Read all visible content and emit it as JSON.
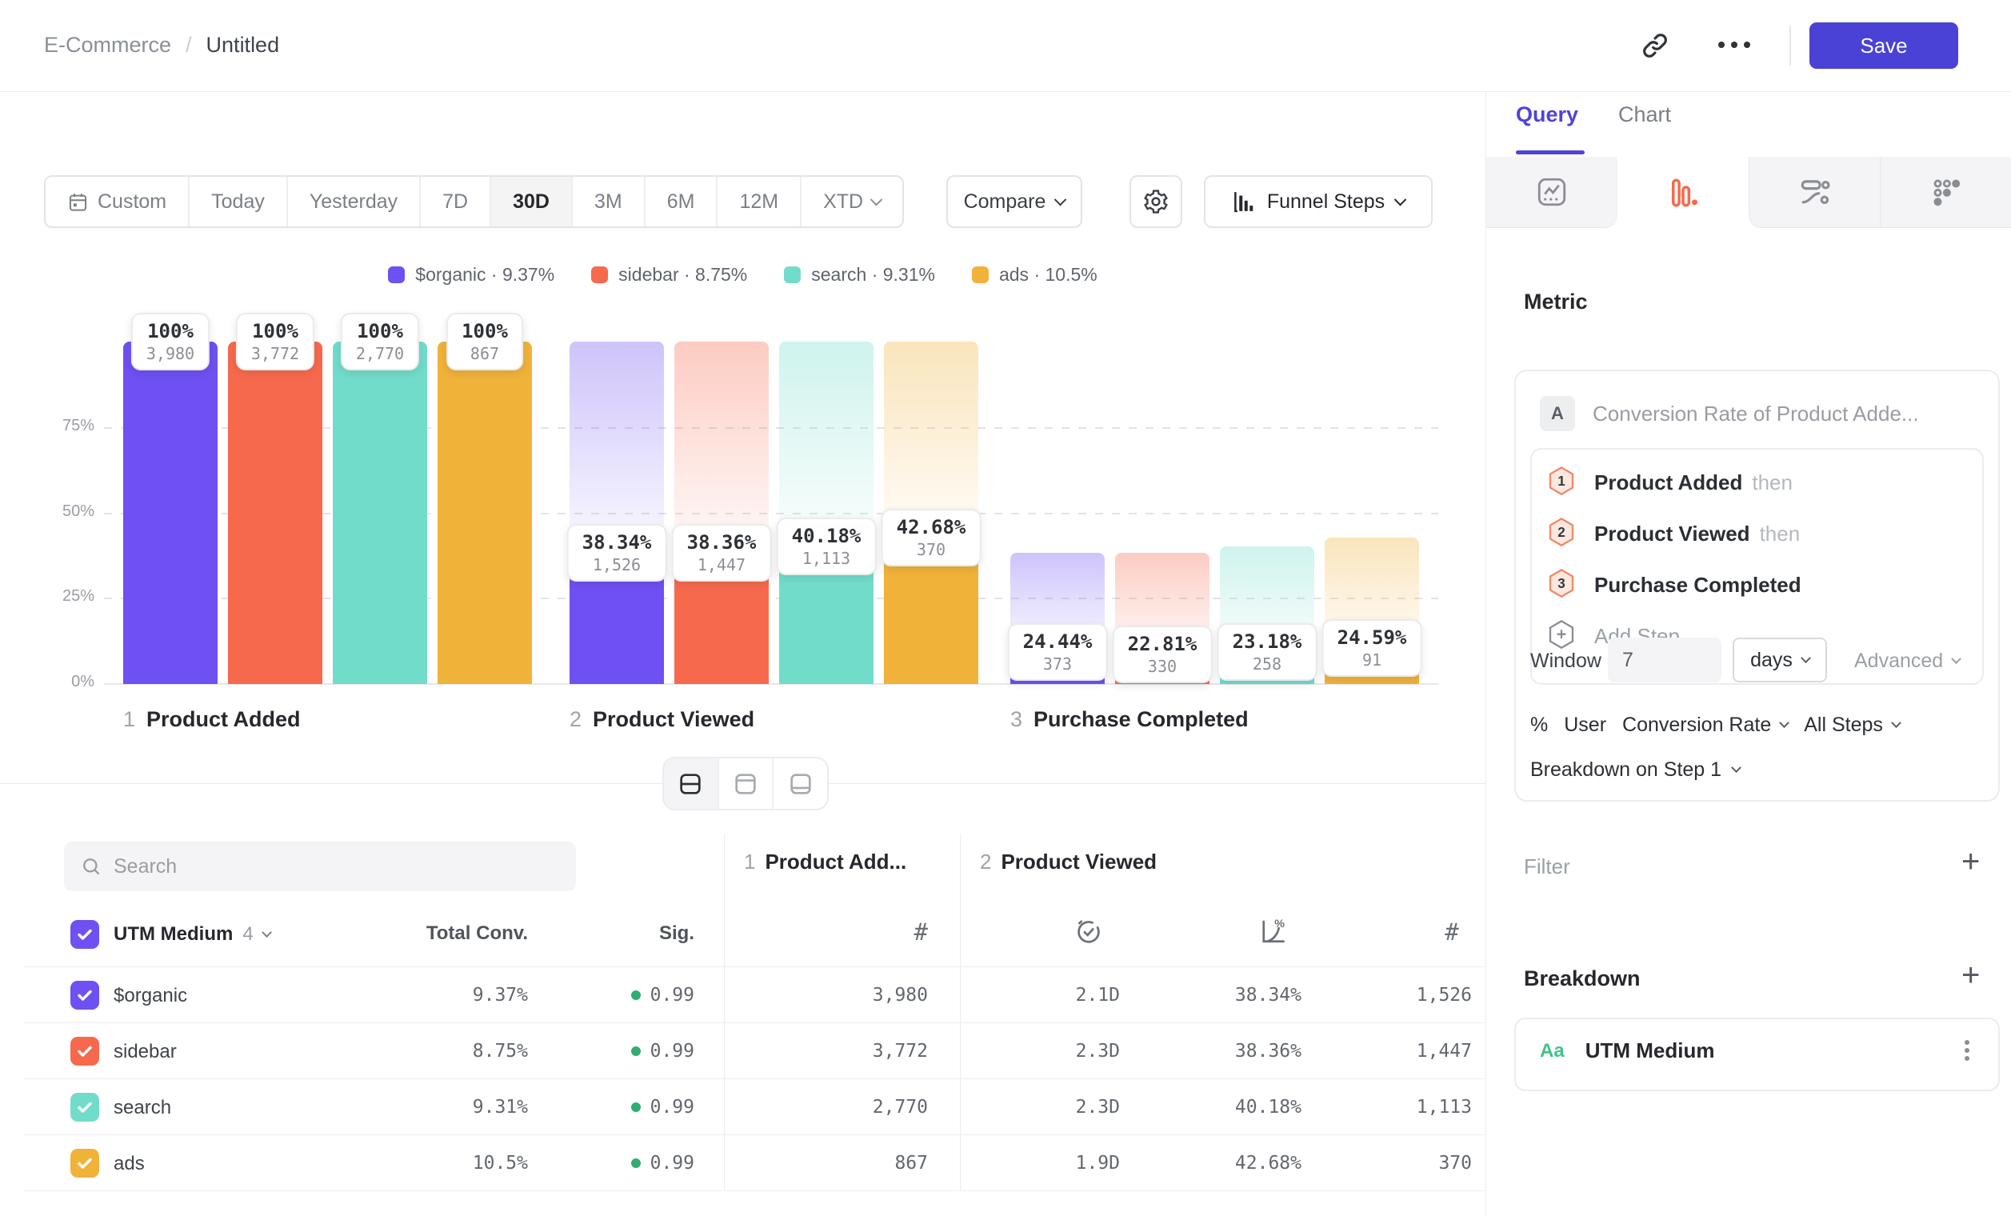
{
  "topbar": {
    "breadcrumb": {
      "project": "E-Commerce",
      "separator": "/",
      "title": "Untitled"
    },
    "save_label": "Save"
  },
  "toolbar": {
    "date_ranges": [
      "Custom",
      "Today",
      "Yesterday",
      "7D",
      "30D",
      "3M",
      "6M",
      "12M",
      "XTD"
    ],
    "selected_range": "30D",
    "compare_label": "Compare",
    "view_label": "Funnel Steps"
  },
  "chart_data": {
    "type": "bar",
    "subtype": "funnel-steps",
    "title": "",
    "y_ticks": [
      "75%",
      "50%",
      "25%",
      "0%"
    ],
    "ylim": [
      0,
      100
    ],
    "grid": true,
    "legend_position": "top",
    "steps": [
      {
        "num": "1",
        "label": "Product Added"
      },
      {
        "num": "2",
        "label": "Product Viewed"
      },
      {
        "num": "3",
        "label": "Purchase Completed"
      }
    ],
    "series": [
      {
        "name": "$organic",
        "color": "#6F50F2",
        "overall": "9.37%",
        "points": [
          {
            "pct": "100%",
            "count": "3,980",
            "solid": 100,
            "ghost": 100
          },
          {
            "pct": "38.34%",
            "count": "1,526",
            "solid": 38.34,
            "ghost": 100
          },
          {
            "pct": "24.44%",
            "count": "373",
            "solid": 9.37,
            "ghost": 38.34
          }
        ]
      },
      {
        "name": "sidebar",
        "color": "#F7694D",
        "overall": "8.75%",
        "points": [
          {
            "pct": "100%",
            "count": "3,772",
            "solid": 100,
            "ghost": 100
          },
          {
            "pct": "38.36%",
            "count": "1,447",
            "solid": 38.36,
            "ghost": 100
          },
          {
            "pct": "22.81%",
            "count": "330",
            "solid": 8.75,
            "ghost": 38.36
          }
        ]
      },
      {
        "name": "search",
        "color": "#72DCCB",
        "overall": "9.31%",
        "points": [
          {
            "pct": "100%",
            "count": "2,770",
            "solid": 100,
            "ghost": 100
          },
          {
            "pct": "40.18%",
            "count": "1,113",
            "solid": 40.18,
            "ghost": 100
          },
          {
            "pct": "23.18%",
            "count": "258",
            "solid": 9.31,
            "ghost": 40.18
          }
        ]
      },
      {
        "name": "ads",
        "color": "#F1B23A",
        "overall": "10.5%",
        "points": [
          {
            "pct": "100%",
            "count": "867",
            "solid": 100,
            "ghost": 100
          },
          {
            "pct": "42.68%",
            "count": "370",
            "solid": 42.68,
            "ghost": 100
          },
          {
            "pct": "24.59%",
            "count": "91",
            "solid": 10.5,
            "ghost": 42.68
          }
        ]
      }
    ]
  },
  "table": {
    "search_placeholder": "Search",
    "group_label": "UTM Medium",
    "group_count": "4",
    "col_total": "Total Conv.",
    "col_sig": "Sig.",
    "count_symbol": "#",
    "step1_header": {
      "num": "1",
      "label": "Product Add..."
    },
    "step2_header": {
      "num": "2",
      "label": "Product Viewed"
    },
    "rows": [
      {
        "name": "$organic",
        "total": "9.37%",
        "sig": "0.99",
        "count1": "3,980",
        "ttc": "2.1D",
        "conv": "38.34%",
        "count2": "1,526"
      },
      {
        "name": "sidebar",
        "total": "8.75%",
        "sig": "0.99",
        "count1": "3,772",
        "ttc": "2.3D",
        "conv": "38.36%",
        "count2": "1,447"
      },
      {
        "name": "search",
        "total": "9.31%",
        "sig": "0.99",
        "count1": "2,770",
        "ttc": "2.3D",
        "conv": "40.18%",
        "count2": "1,113"
      },
      {
        "name": "ads",
        "total": "10.5%",
        "sig": "0.99",
        "count1": "867",
        "ttc": "1.9D",
        "conv": "42.68%",
        "count2": "370"
      }
    ]
  },
  "panel": {
    "tabs": [
      "Query",
      "Chart"
    ],
    "active_tab": "Query",
    "metric_heading": "Metric",
    "metric_letter": "A",
    "metric_title": "Conversion Rate of Product Adde...",
    "steps": [
      {
        "num": "1",
        "label": "Product Added",
        "suffix": "then"
      },
      {
        "num": "2",
        "label": "Product Viewed",
        "suffix": "then"
      },
      {
        "num": "3",
        "label": "Purchase Completed",
        "suffix": ""
      }
    ],
    "add_step": "Add Step",
    "window": {
      "label": "Window",
      "value": "7",
      "unit": "days",
      "advanced": "Advanced"
    },
    "measure": {
      "prefix": "%",
      "entity": "User",
      "metric": "Conversion Rate",
      "scope": "All Steps"
    },
    "breakdown_on": "Breakdown on Step 1",
    "filter_label": "Filter",
    "breakdown_label": "Breakdown",
    "breakdown_item": {
      "icon": "Aa",
      "label": "UTM Medium"
    }
  },
  "colors": {
    "accent": "#4A41D6",
    "active_tab": "#4F43D8",
    "funnel_icon": "#F7694D",
    "sig_green": "#2FAE70",
    "breakdown_icon_green": "#3CC488"
  }
}
